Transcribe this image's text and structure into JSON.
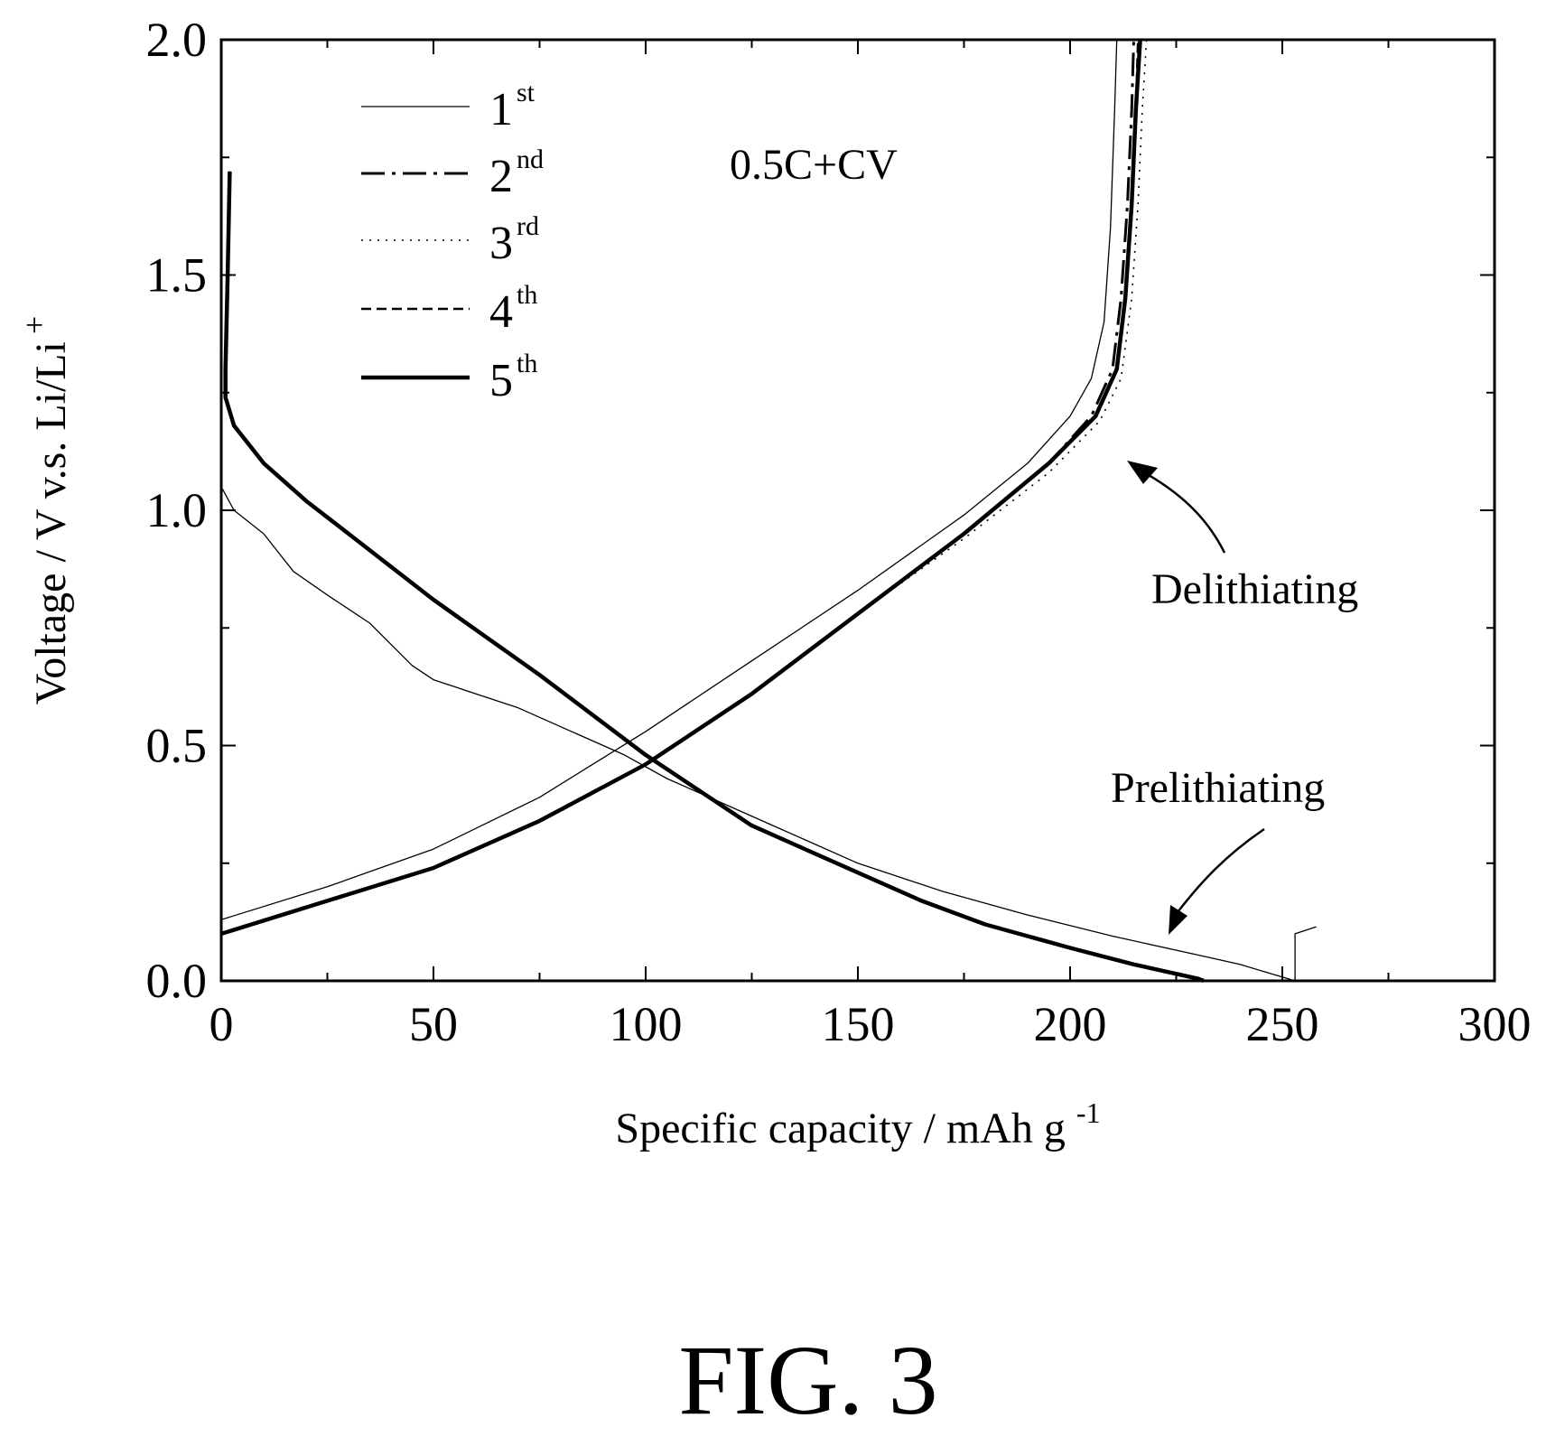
{
  "chart_data": {
    "type": "line",
    "xlabel": "Specific capacity / mAh g",
    "xlabel_sup": "-1",
    "ylabel": "Voltage / V v.s. Li/Li",
    "ylabel_sup": "+",
    "xlim": [
      0,
      300
    ],
    "ylim": [
      0,
      2.0
    ],
    "xticks": [
      "0",
      "50",
      "100",
      "150",
      "200",
      "250",
      "300"
    ],
    "yticks": [
      "0.0",
      "0.5",
      "1.0",
      "1.5",
      "2.0"
    ],
    "grid": false,
    "legend_position": "top-left",
    "condition_label": "0.5C+CV",
    "annotations": [
      "Delithiating",
      "Prelithiating"
    ],
    "series": [
      {
        "name": "1",
        "name_sup": "st",
        "style": "thin",
        "segments": [
          [
            [
              0,
              1.05
            ],
            [
              3,
              1.0
            ],
            [
              10,
              0.95
            ],
            [
              17,
              0.87
            ],
            [
              25,
              0.82
            ],
            [
              35,
              0.76
            ],
            [
              45,
              0.67
            ],
            [
              50,
              0.64
            ],
            [
              60,
              0.61
            ],
            [
              70,
              0.58
            ],
            [
              80,
              0.54
            ],
            [
              95,
              0.48
            ],
            [
              105,
              0.43
            ],
            [
              115,
              0.39
            ],
            [
              130,
              0.33
            ],
            [
              150,
              0.25
            ],
            [
              170,
              0.19
            ],
            [
              190,
              0.14
            ],
            [
              210,
              0.095
            ],
            [
              230,
              0.055
            ],
            [
              240,
              0.035
            ],
            [
              253,
              0.0
            ],
            [
              253,
              0.1
            ],
            [
              258,
              0.115
            ]
          ],
          [
            [
              0,
              0.13
            ],
            [
              25,
              0.2
            ],
            [
              50,
              0.28
            ],
            [
              75,
              0.39
            ],
            [
              100,
              0.53
            ],
            [
              125,
              0.68
            ],
            [
              150,
              0.83
            ],
            [
              175,
              0.99
            ],
            [
              190,
              1.1
            ],
            [
              200,
              1.2
            ],
            [
              205,
              1.28
            ],
            [
              208,
              1.4
            ],
            [
              209.5,
              1.6
            ],
            [
              210.5,
              1.85
            ],
            [
              211,
              2.0
            ]
          ]
        ]
      },
      {
        "name": "2",
        "name_sup": "nd",
        "style": "dashdot",
        "segments": [
          [
            [
              2,
              1.72
            ],
            [
              1.5,
              1.5
            ],
            [
              1,
              1.3
            ],
            [
              1,
              1.24
            ],
            [
              3,
              1.18
            ],
            [
              10,
              1.1
            ],
            [
              20,
              1.02
            ],
            [
              30,
              0.95
            ],
            [
              50,
              0.81
            ],
            [
              75,
              0.65
            ],
            [
              100,
              0.48
            ],
            [
              125,
              0.33
            ],
            [
              150,
              0.23
            ],
            [
              165,
              0.17
            ],
            [
              180,
              0.12
            ],
            [
              200,
              0.07
            ],
            [
              215,
              0.035
            ],
            [
              230,
              0.005
            ],
            [
              231.5,
              0.0
            ]
          ],
          [
            [
              0,
              0.1
            ],
            [
              25,
              0.17
            ],
            [
              50,
              0.24
            ],
            [
              75,
              0.34
            ],
            [
              100,
              0.46
            ],
            [
              125,
              0.61
            ],
            [
              150,
              0.78
            ],
            [
              175,
              0.95
            ],
            [
              195,
              1.1
            ],
            [
              205,
              1.2
            ],
            [
              210,
              1.3
            ],
            [
              212,
              1.45
            ],
            [
              213.5,
              1.65
            ],
            [
              214.5,
              1.85
            ],
            [
              215,
              2.0
            ]
          ]
        ]
      },
      {
        "name": "3",
        "name_sup": "rd",
        "style": "dotted",
        "segments": [
          [
            [
              2,
              1.72
            ],
            [
              1.5,
              1.5
            ],
            [
              1,
              1.3
            ],
            [
              1,
              1.24
            ],
            [
              3,
              1.18
            ],
            [
              10,
              1.1
            ],
            [
              20,
              1.02
            ],
            [
              30,
              0.95
            ],
            [
              50,
              0.81
            ],
            [
              75,
              0.65
            ],
            [
              100,
              0.48
            ],
            [
              125,
              0.33
            ],
            [
              150,
              0.23
            ],
            [
              165,
              0.17
            ],
            [
              180,
              0.12
            ],
            [
              200,
              0.07
            ],
            [
              215,
              0.035
            ],
            [
              230,
              0.005
            ],
            [
              231.5,
              0.0
            ]
          ],
          [
            [
              0,
              0.1
            ],
            [
              25,
              0.17
            ],
            [
              50,
              0.24
            ],
            [
              75,
              0.34
            ],
            [
              100,
              0.46
            ],
            [
              125,
              0.61
            ],
            [
              150,
              0.78
            ],
            [
              175,
              0.94
            ],
            [
              195,
              1.08
            ],
            [
              207,
              1.19
            ],
            [
              212,
              1.28
            ],
            [
              214.5,
              1.45
            ],
            [
              216,
              1.65
            ],
            [
              217,
              1.85
            ],
            [
              218,
              2.0
            ]
          ]
        ]
      },
      {
        "name": "4",
        "name_sup": "th",
        "style": "dashed",
        "segments": [
          [
            [
              2,
              1.72
            ],
            [
              1.5,
              1.5
            ],
            [
              1,
              1.3
            ],
            [
              1,
              1.24
            ],
            [
              3,
              1.18
            ],
            [
              10,
              1.1
            ],
            [
              20,
              1.02
            ],
            [
              30,
              0.95
            ],
            [
              50,
              0.81
            ],
            [
              75,
              0.65
            ],
            [
              100,
              0.48
            ],
            [
              125,
              0.33
            ],
            [
              150,
              0.23
            ],
            [
              165,
              0.17
            ],
            [
              180,
              0.12
            ],
            [
              200,
              0.07
            ],
            [
              215,
              0.035
            ],
            [
              230,
              0.005
            ],
            [
              231.5,
              0.0
            ]
          ],
          [
            [
              0,
              0.1
            ],
            [
              25,
              0.17
            ],
            [
              50,
              0.24
            ],
            [
              75,
              0.34
            ],
            [
              100,
              0.46
            ],
            [
              125,
              0.61
            ],
            [
              150,
              0.78
            ],
            [
              175,
              0.95
            ],
            [
              195,
              1.1
            ],
            [
              206,
              1.2
            ],
            [
              211,
              1.3
            ],
            [
              213,
              1.45
            ],
            [
              214.5,
              1.65
            ],
            [
              215.5,
              1.85
            ],
            [
              216,
              2.0
            ]
          ]
        ]
      },
      {
        "name": "5",
        "name_sup": "th",
        "style": "thick",
        "segments": [
          [
            [
              2,
              1.72
            ],
            [
              1.5,
              1.5
            ],
            [
              1,
              1.3
            ],
            [
              1,
              1.24
            ],
            [
              3,
              1.18
            ],
            [
              10,
              1.1
            ],
            [
              20,
              1.02
            ],
            [
              30,
              0.95
            ],
            [
              50,
              0.81
            ],
            [
              75,
              0.65
            ],
            [
              100,
              0.48
            ],
            [
              125,
              0.33
            ],
            [
              150,
              0.23
            ],
            [
              165,
              0.17
            ],
            [
              180,
              0.12
            ],
            [
              200,
              0.07
            ],
            [
              215,
              0.035
            ],
            [
              230,
              0.005
            ],
            [
              231.5,
              0.0
            ]
          ],
          [
            [
              0,
              0.1
            ],
            [
              25,
              0.17
            ],
            [
              50,
              0.24
            ],
            [
              75,
              0.34
            ],
            [
              100,
              0.46
            ],
            [
              125,
              0.61
            ],
            [
              150,
              0.78
            ],
            [
              175,
              0.95
            ],
            [
              195,
              1.1
            ],
            [
              206,
              1.2
            ],
            [
              211,
              1.3
            ],
            [
              213,
              1.45
            ],
            [
              214.5,
              1.65
            ],
            [
              215.5,
              1.85
            ],
            [
              216.5,
              2.0
            ]
          ]
        ]
      }
    ]
  },
  "figure_label": "FIG. 3"
}
